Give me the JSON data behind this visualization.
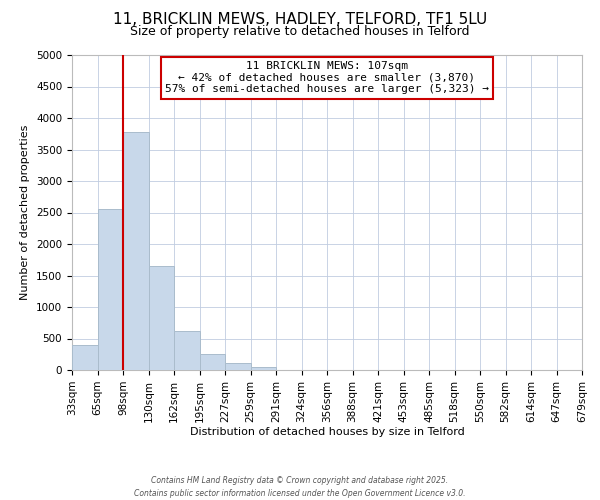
{
  "title": "11, BRICKLIN MEWS, HADLEY, TELFORD, TF1 5LU",
  "subtitle": "Size of property relative to detached houses in Telford",
  "xlabel": "Distribution of detached houses by size in Telford",
  "ylabel": "Number of detached properties",
  "bar_color": "#c8d8ea",
  "bar_edge_color": "#aabccc",
  "bins": [
    "33sqm",
    "65sqm",
    "98sqm",
    "130sqm",
    "162sqm",
    "195sqm",
    "227sqm",
    "259sqm",
    "291sqm",
    "324sqm",
    "356sqm",
    "388sqm",
    "421sqm",
    "453sqm",
    "485sqm",
    "518sqm",
    "550sqm",
    "582sqm",
    "614sqm",
    "647sqm",
    "679sqm"
  ],
  "values": [
    400,
    2550,
    3780,
    1650,
    625,
    250,
    105,
    50,
    0,
    0,
    0,
    0,
    0,
    0,
    0,
    0,
    0,
    0,
    0,
    0
  ],
  "ylim": [
    0,
    5000
  ],
  "yticks": [
    0,
    500,
    1000,
    1500,
    2000,
    2500,
    3000,
    3500,
    4000,
    4500,
    5000
  ],
  "property_line_x": 2.0,
  "property_line_label": "11 BRICKLIN MEWS: 107sqm",
  "annotation_line1": "← 42% of detached houses are smaller (3,870)",
  "annotation_line2": "57% of semi-detached houses are larger (5,323) →",
  "vline_color": "#cc0000",
  "footer1": "Contains HM Land Registry data © Crown copyright and database right 2025.",
  "footer2": "Contains public sector information licensed under the Open Government Licence v3.0.",
  "background_color": "#ffffff",
  "grid_color": "#c0cce0",
  "title_fontsize": 11,
  "subtitle_fontsize": 9,
  "annotation_fontsize": 8,
  "axis_label_fontsize": 8,
  "tick_fontsize": 7.5
}
